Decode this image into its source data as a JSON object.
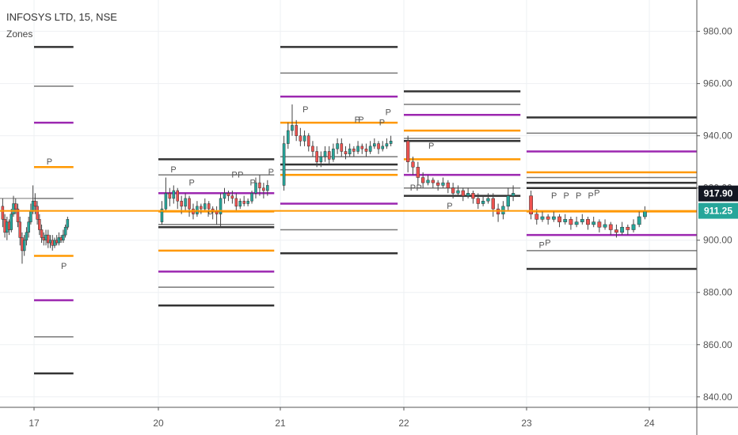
{
  "header": {
    "symbol_line": "INFOSYS LTD, 15, NSE",
    "indicator_label": "Zones"
  },
  "chart_data": {
    "type": "candlestick",
    "symbol": "INFOSYS LTD",
    "interval": "15",
    "exchange": "NSE",
    "y_axis": {
      "range": [
        836,
        992
      ],
      "ticks": [
        840,
        860,
        880,
        900,
        920,
        940,
        960,
        980
      ],
      "tick_labels": [
        "840.00",
        "860.00",
        "880.00",
        "900.00",
        "920.00",
        "940.00",
        "960.00",
        "980.00"
      ]
    },
    "x_axis": {
      "range": [
        16.7,
        24.4
      ],
      "ticks": [
        17,
        20,
        21,
        22,
        23,
        24
      ],
      "tick_labels": [
        "17",
        "20",
        "21",
        "22",
        "23",
        "24"
      ]
    },
    "price_labels": [
      {
        "value": 917.9,
        "text": "917.90",
        "color": "#131722"
      },
      {
        "value": 911.25,
        "text": "911.25",
        "color": "#26a69a"
      }
    ],
    "current_price_line": 911.25,
    "colors": {
      "up": "#26a69a",
      "down": "#ef5350",
      "gray": "#787878",
      "dark": "#333333",
      "purple": "#9c27b0",
      "orange": "#ff9800"
    },
    "sessions": [
      {
        "day": 17,
        "x_start": 16.7,
        "x_end": 17.95,
        "candles": [
          [
            913,
            908,
            916,
            905
          ],
          [
            908,
            903,
            910,
            901
          ],
          [
            903,
            907,
            909,
            900
          ],
          [
            907,
            904,
            908,
            902
          ],
          [
            904,
            910,
            912,
            903
          ],
          [
            910,
            914,
            917,
            909
          ],
          [
            914,
            912,
            916,
            910
          ],
          [
            912,
            907,
            914,
            905
          ],
          [
            907,
            901,
            909,
            898
          ],
          [
            901,
            896,
            903,
            891
          ],
          [
            896,
            900,
            902,
            894
          ],
          [
            900,
            903,
            905,
            898
          ],
          [
            903,
            907,
            909,
            901
          ],
          [
            907,
            911,
            914,
            906
          ],
          [
            911,
            915,
            921,
            910
          ],
          [
            915,
            913,
            918,
            910
          ],
          [
            913,
            908,
            915,
            906
          ],
          [
            908,
            904,
            910,
            902
          ],
          [
            904,
            901,
            906,
            899
          ],
          [
            901,
            900,
            903,
            898
          ],
          [
            900,
            902,
            904,
            898
          ],
          [
            902,
            899,
            904,
            897
          ],
          [
            899,
            900,
            902,
            897
          ],
          [
            900,
            898,
            902,
            896
          ],
          [
            898,
            900,
            901,
            897
          ],
          [
            900,
            899,
            902,
            898
          ],
          [
            899,
            901,
            903,
            898
          ],
          [
            901,
            900,
            902,
            899
          ],
          [
            900,
            902,
            904,
            899
          ],
          [
            902,
            905,
            906,
            901
          ],
          [
            905,
            908,
            909,
            904
          ]
        ],
        "zones": [
          {
            "price": 974,
            "color": "dark"
          },
          {
            "price": 959,
            "color": "gray"
          },
          {
            "price": 945,
            "color": "purple"
          },
          {
            "price": 928,
            "color": "orange"
          },
          {
            "price": 916,
            "color": "gray"
          },
          {
            "price": 894,
            "color": "orange"
          },
          {
            "price": 877,
            "color": "purple"
          },
          {
            "price": 863,
            "color": "gray"
          },
          {
            "price": 849,
            "color": "dark"
          }
        ],
        "p_labels": [
          [
            17.3,
            929
          ],
          [
            17.65,
            889
          ]
        ]
      },
      {
        "day": 20,
        "x_start": 20.0,
        "x_end": 20.95,
        "candles": [
          [
            907,
            912,
            915,
            906
          ],
          [
            912,
            918,
            924,
            911
          ],
          [
            918,
            916,
            920,
            913
          ],
          [
            916,
            919,
            921,
            914
          ],
          [
            919,
            915,
            920,
            912
          ],
          [
            915,
            913,
            917,
            910
          ],
          [
            913,
            916,
            918,
            911
          ],
          [
            916,
            912,
            917,
            909
          ],
          [
            912,
            910,
            914,
            908
          ],
          [
            910,
            913,
            915,
            909
          ],
          [
            913,
            912,
            914,
            910
          ],
          [
            912,
            914,
            916,
            911
          ],
          [
            914,
            912,
            915,
            910
          ],
          [
            912,
            911,
            913,
            908
          ],
          [
            911,
            910,
            913,
            906
          ],
          [
            910,
            916,
            918,
            905
          ],
          [
            916,
            918,
            920,
            914
          ],
          [
            918,
            917,
            919,
            915
          ],
          [
            917,
            916,
            919,
            914
          ],
          [
            916,
            913,
            918,
            911
          ],
          [
            913,
            915,
            916,
            912
          ],
          [
            915,
            914,
            917,
            913
          ],
          [
            914,
            915,
            916,
            913
          ],
          [
            915,
            918,
            919,
            914
          ],
          [
            918,
            922,
            924,
            916
          ],
          [
            922,
            920,
            925,
            917
          ],
          [
            920,
            919,
            922,
            916
          ],
          [
            919,
            921,
            923,
            917
          ]
        ],
        "zones": [
          {
            "price": 931,
            "color": "dark"
          },
          {
            "price": 925,
            "color": "gray"
          },
          {
            "price": 918,
            "color": "purple"
          },
          {
            "price": 911,
            "color": "orange"
          },
          {
            "price": 906,
            "color": "gray"
          },
          {
            "price": 905,
            "color": "dark"
          },
          {
            "price": 896,
            "color": "orange"
          },
          {
            "price": 888,
            "color": "purple"
          },
          {
            "price": 882,
            "color": "gray"
          },
          {
            "price": 875,
            "color": "dark"
          }
        ],
        "p_labels": [
          [
            20.1,
            926
          ],
          [
            20.25,
            921
          ],
          [
            20.4,
            909
          ],
          [
            20.6,
            924
          ],
          [
            20.65,
            924
          ],
          [
            20.75,
            921
          ],
          [
            20.9,
            925
          ]
        ]
      },
      {
        "day": 21,
        "x_start": 21.0,
        "x_end": 21.95,
        "candles": [
          [
            921,
            937,
            940,
            919
          ],
          [
            937,
            942,
            945,
            935
          ],
          [
            942,
            944,
            952,
            940
          ],
          [
            944,
            940,
            946,
            938
          ],
          [
            940,
            938,
            943,
            936
          ],
          [
            938,
            940,
            942,
            936
          ],
          [
            940,
            936,
            941,
            934
          ],
          [
            936,
            934,
            938,
            932
          ],
          [
            934,
            930,
            936,
            928
          ],
          [
            930,
            932,
            934,
            928
          ],
          [
            932,
            934,
            936,
            930
          ],
          [
            934,
            931,
            936,
            929
          ],
          [
            931,
            935,
            937,
            930
          ],
          [
            935,
            937,
            939,
            933
          ],
          [
            937,
            934,
            939,
            932
          ],
          [
            934,
            933,
            936,
            931
          ],
          [
            933,
            935,
            937,
            932
          ],
          [
            935,
            934,
            936,
            932
          ],
          [
            934,
            936,
            938,
            933
          ],
          [
            936,
            935,
            937,
            933
          ],
          [
            935,
            934,
            937,
            932
          ],
          [
            934,
            936,
            938,
            933
          ],
          [
            936,
            937,
            939,
            935
          ],
          [
            937,
            935,
            938,
            933
          ],
          [
            935,
            936,
            938,
            934
          ],
          [
            936,
            937,
            939,
            935
          ],
          [
            937,
            938,
            940,
            936
          ]
        ],
        "zones": [
          {
            "price": 974,
            "color": "dark"
          },
          {
            "price": 964,
            "color": "gray"
          },
          {
            "price": 955,
            "color": "purple"
          },
          {
            "price": 945,
            "color": "orange"
          },
          {
            "price": 932,
            "color": "gray"
          },
          {
            "price": 929,
            "color": "dark"
          },
          {
            "price": 927,
            "color": "gray"
          },
          {
            "price": 925,
            "color": "orange"
          },
          {
            "price": 914,
            "color": "purple"
          },
          {
            "price": 904,
            "color": "gray"
          },
          {
            "price": 895,
            "color": "dark"
          }
        ],
        "p_labels": [
          [
            21.18,
            949
          ],
          [
            21.6,
            945
          ],
          [
            21.63,
            945
          ],
          [
            21.8,
            944
          ],
          [
            21.85,
            948
          ]
        ]
      },
      {
        "day": 22,
        "x_start": 22.0,
        "x_end": 22.95,
        "candles": [
          [
            938,
            930,
            940,
            926
          ],
          [
            930,
            928,
            932,
            925
          ],
          [
            928,
            924,
            930,
            921
          ],
          [
            924,
            922,
            926,
            920
          ],
          [
            922,
            923,
            925,
            921
          ],
          [
            923,
            922,
            924,
            920
          ],
          [
            922,
            921,
            923,
            919
          ],
          [
            921,
            922,
            924,
            920
          ],
          [
            922,
            920,
            923,
            918
          ],
          [
            920,
            918,
            922,
            916
          ],
          [
            918,
            919,
            921,
            917
          ],
          [
            919,
            917,
            920,
            915
          ],
          [
            917,
            918,
            920,
            916
          ],
          [
            918,
            916,
            919,
            914
          ],
          [
            916,
            914,
            918,
            912
          ],
          [
            914,
            915,
            917,
            913
          ],
          [
            915,
            916,
            918,
            914
          ],
          [
            916,
            912,
            918,
            909
          ],
          [
            912,
            910,
            914,
            907
          ],
          [
            910,
            913,
            915,
            908
          ],
          [
            913,
            917,
            920,
            911
          ],
          [
            917,
            918,
            921,
            915
          ]
        ],
        "zones": [
          {
            "price": 957,
            "color": "dark"
          },
          {
            "price": 952,
            "color": "gray"
          },
          {
            "price": 948,
            "color": "purple"
          },
          {
            "price": 942,
            "color": "orange"
          },
          {
            "price": 939,
            "color": "gray"
          },
          {
            "price": 938,
            "color": "dark"
          },
          {
            "price": 931,
            "color": "orange"
          },
          {
            "price": 925,
            "color": "purple"
          },
          {
            "price": 920,
            "color": "gray"
          },
          {
            "price": 917,
            "color": "dark"
          }
        ],
        "p_labels": [
          [
            22.05,
            919
          ],
          [
            22.1,
            919
          ],
          [
            22.2,
            935
          ],
          [
            22.35,
            912
          ]
        ]
      },
      {
        "day": 23,
        "x_start": 23.0,
        "x_end": 24.4,
        "candles": [
          [
            917,
            910,
            919,
            908
          ],
          [
            910,
            908,
            912,
            906
          ],
          [
            908,
            909,
            911,
            907
          ],
          [
            909,
            908,
            910,
            906
          ],
          [
            908,
            909,
            911,
            907
          ],
          [
            909,
            907,
            910,
            905
          ],
          [
            907,
            908,
            910,
            906
          ],
          [
            908,
            906,
            909,
            904
          ],
          [
            906,
            907,
            909,
            905
          ],
          [
            907,
            908,
            910,
            906
          ],
          [
            908,
            906,
            909,
            904
          ],
          [
            906,
            907,
            909,
            905
          ],
          [
            907,
            905,
            908,
            903
          ],
          [
            905,
            906,
            908,
            904
          ],
          [
            906,
            904,
            907,
            902
          ],
          [
            904,
            903,
            906,
            901
          ],
          [
            903,
            905,
            907,
            902
          ],
          [
            905,
            904,
            906,
            902
          ],
          [
            904,
            906,
            908,
            903
          ],
          [
            906,
            909,
            911,
            905
          ],
          [
            909,
            911,
            913,
            908
          ]
        ],
        "zones": [
          {
            "price": 947,
            "color": "dark"
          },
          {
            "price": 941,
            "color": "gray"
          },
          {
            "price": 934,
            "color": "purple"
          },
          {
            "price": 926,
            "color": "orange"
          },
          {
            "price": 924,
            "color": "gray"
          },
          {
            "price": 922,
            "color": "dark"
          },
          {
            "price": 920,
            "color": "dark"
          },
          {
            "price": 911,
            "color": "orange"
          },
          {
            "price": 902,
            "color": "purple"
          },
          {
            "price": 896,
            "color": "gray"
          },
          {
            "price": 889,
            "color": "dark"
          }
        ],
        "p_labels": [
          [
            23.2,
            916
          ],
          [
            23.3,
            916
          ],
          [
            23.4,
            916
          ],
          [
            23.5,
            916
          ],
          [
            23.55,
            917
          ],
          [
            23.1,
            897
          ],
          [
            23.15,
            898
          ]
        ]
      }
    ]
  }
}
